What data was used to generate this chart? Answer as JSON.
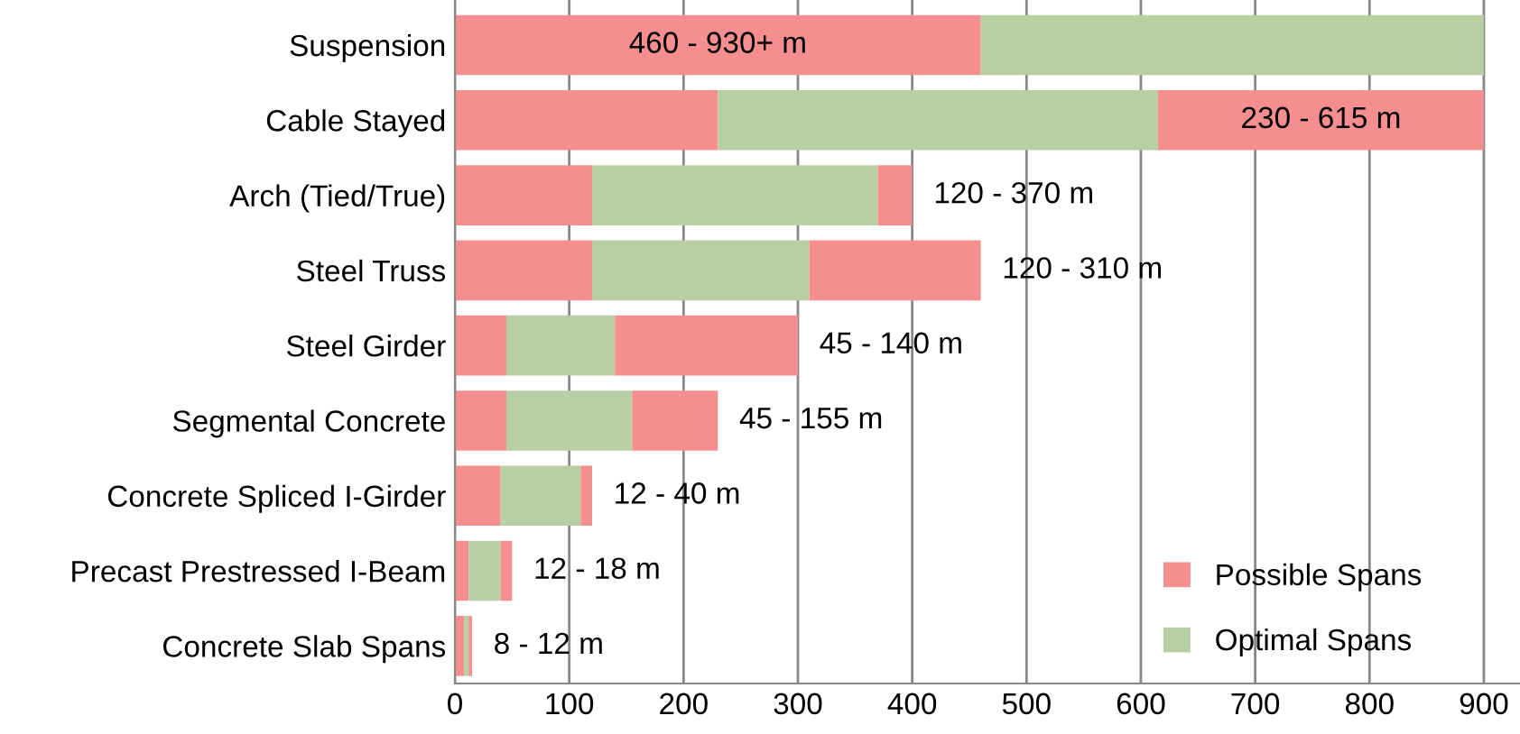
{
  "chart_data": {
    "type": "bar",
    "orientation": "horizontal",
    "stacked": true,
    "categories": [
      "Suspension",
      "Cable Stayed",
      "Arch (Tied/True)",
      "Steel Truss",
      "Steel Girder",
      "Segmental Concrete",
      "Concrete Spliced I-Girder",
      "Precast Prestressed I-Beam",
      "Concrete Slab Spans"
    ],
    "series": [
      {
        "name": "Possible Spans",
        "color": "#f58f8f",
        "values": [
          460,
          230,
          120,
          120,
          45,
          45,
          40,
          12,
          8
        ]
      },
      {
        "name": "Optimal Spans",
        "color": "#b8cfa3",
        "values": [
          440,
          385,
          250,
          190,
          95,
          110,
          70,
          28,
          4
        ]
      },
      {
        "color": "#f58f8f",
        "values": [
          0,
          285,
          30,
          150,
          160,
          75,
          10,
          10,
          3
        ]
      }
    ],
    "xlim": [
      0,
      935
    ],
    "xticks": [
      0,
      100,
      200,
      300,
      400,
      500,
      600,
      700,
      800,
      900
    ],
    "grid": "x",
    "legend": "bottom right",
    "annotations": [
      "460 - 930+ m",
      "230 - 615 m",
      "120 - 370 m",
      "120 - 310 m",
      "45 - 140 m",
      "45 - 155 m",
      "12 - 40 m",
      "12 - 18 m",
      "8 - 12 m"
    ]
  }
}
